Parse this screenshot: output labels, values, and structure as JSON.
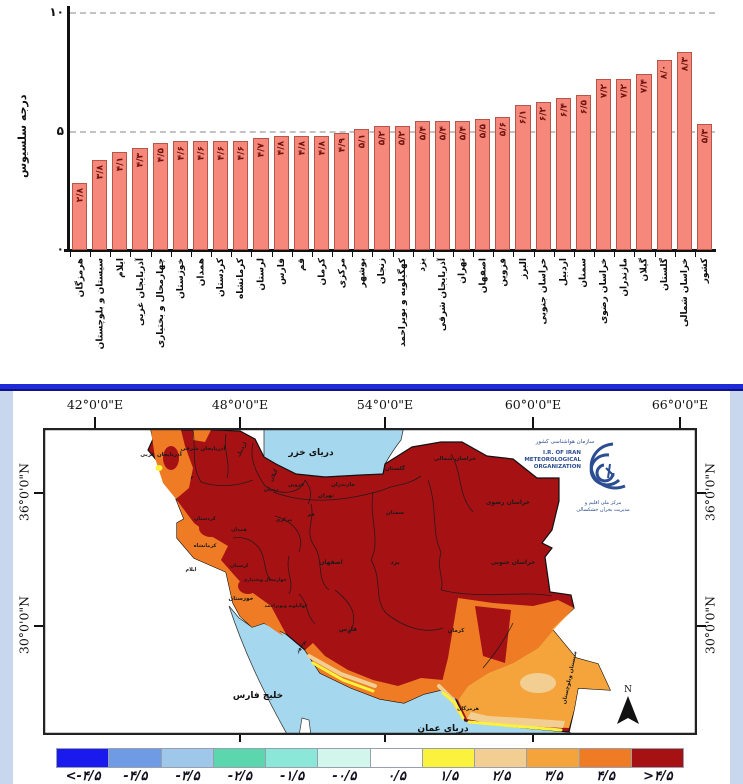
{
  "chart_data": {
    "type": "bar",
    "title": "",
    "ylabel": "درجه سلسیوس",
    "ylim": [
      0,
      10
    ],
    "yticks": [
      "۰",
      "۵",
      "۱۰"
    ],
    "grid": "dashed horizontal at 5 and 10",
    "bar_color": "#F5887B",
    "value_label_color": "#6E130E",
    "categories": [
      "هرمزگان",
      "سیستان و بلوچستان",
      "ایلام",
      "آذربایجان غربی",
      "چهارمحال و بختیاری",
      "خوزستان",
      "همدان",
      "کردستان",
      "کرمانشاه",
      "لرستان",
      "فارس",
      "قم",
      "کرمان",
      "مرکزی",
      "بوشهر",
      "زنجان",
      "کهگیلویه و بویراحمد",
      "یزد",
      "آذربایجان شرقی",
      "تهران",
      "اصفهان",
      "قزوین",
      "البرز",
      "خراسان جنوبی",
      "اردبیل",
      "سمنان",
      "خراسان رضوی",
      "مازندران",
      "گیلان",
      "گلستان",
      "خراسان شمالی",
      "کشور"
    ],
    "values": [
      2.8,
      3.8,
      4.1,
      4.3,
      4.5,
      4.6,
      4.6,
      4.6,
      4.6,
      4.7,
      4.8,
      4.8,
      4.8,
      4.9,
      5.1,
      5.2,
      5.2,
      5.4,
      5.4,
      5.4,
      5.5,
      5.6,
      6.1,
      6.2,
      6.4,
      6.5,
      7.2,
      7.2,
      7.4,
      8.0,
      8.3,
      5.3
    ],
    "value_labels": [
      "۲/۸",
      "۳/۸",
      "۴/۱",
      "۴/۳",
      "۴/۵",
      "۴/۶",
      "۴/۶",
      "۴/۶",
      "۴/۶",
      "۴/۷",
      "۴/۸",
      "۴/۸",
      "۴/۸",
      "۴/۹",
      "۵/۱",
      "۵/۲",
      "۵/۲",
      "۵/۴",
      "۵/۴",
      "۵/۴",
      "۵/۵",
      "۵/۶",
      "۶/۱",
      "۶/۲",
      "۶/۴",
      "۶/۵",
      "۷/۲",
      "۷/۲",
      "۷/۴",
      "۸/۰",
      "۸/۳",
      "۵/۳"
    ]
  },
  "map": {
    "lon_labels": [
      "42°0'0\"E",
      "48°0'0\"E",
      "54°0'0\"E",
      "60°0'0\"E",
      "66°0'0\"E"
    ],
    "lat_labels": [
      "36°0'0\"N",
      "30°0'0\"N"
    ],
    "sea_labels": {
      "caspian": "دریای خزر",
      "persian_gulf": "خلیج فارس",
      "oman": "دریای عمان"
    },
    "north_label": "N",
    "logo": {
      "fa_top": "سازمان هواشناسی کشور",
      "en1": "I.R. OF IRAN",
      "en2": "METEOROLOGICAL",
      "en3": "ORGANIZATION",
      "fa_bottom1": "مرکز ملی اقلیم و",
      "fa_bottom2": "مدیریت بحران خشکسالی"
    },
    "province_labels": [
      "آذربایجان غربی",
      "آذربایجان شرقی",
      "اردبیل",
      "گیلان",
      "زنجان",
      "قزوین",
      "مازندران",
      "گلستان",
      "خراسان شمالی",
      "تهران",
      "سمنان",
      "خراسان رضوی",
      "کردستان",
      "همدان",
      "مرکزی",
      "قم",
      "کرمانشاه",
      "لرستان",
      "ایلام",
      "خوزستان",
      "چهارمحال وبختیاری",
      "اصفهان",
      "یزد",
      "خراسان جنوبی",
      "کهگیلویه وبویراحمد",
      "بوشهر",
      "فارس",
      "کرمان",
      "هرمزگان",
      "سیستان وبلوچستان"
    ],
    "legend": {
      "labels": [
        "<-۴/۵",
        "-۴/۵",
        "-۳/۵",
        "-۲/۵",
        "-۱/۵",
        "-۰/۵",
        "۰/۵",
        "۱/۵",
        "۲/۵",
        "۳/۵",
        "۴/۵",
        ">۴/۵"
      ],
      "colors": [
        "#1A1AEF",
        "#6E9BE4",
        "#9EC7EA",
        "#5CD6AD",
        "#8BE8D8",
        "#D2F5EC",
        "#FFFFFF",
        "#FAF23C",
        "#F2CE93",
        "#F5A43C",
        "#EF7B25",
        "#A61114"
      ]
    },
    "colors": {
      "sea": "#A5D7EE",
      "iran_base": "#A61114",
      "orange": "#EF7B25",
      "amber": "#F5A43C",
      "tan": "#F2CE93",
      "yellow": "#FAF23C",
      "divider": "#1F2AD8"
    }
  }
}
